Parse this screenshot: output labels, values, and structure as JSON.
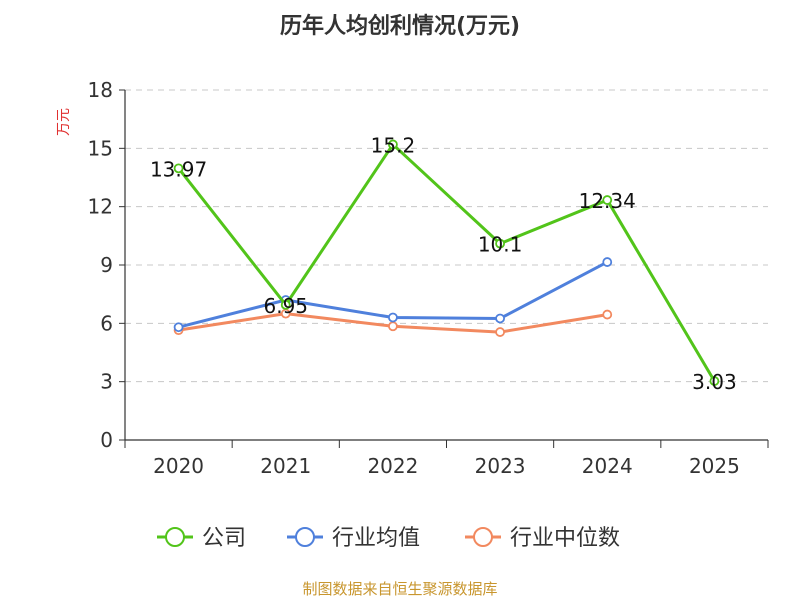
{
  "chart_data": {
    "type": "line",
    "title": "历年人均创利情况(万元)",
    "ylabel": "万元",
    "xlabel": "",
    "categories": [
      "2020",
      "2021",
      "2022",
      "2023",
      "2024",
      "2025"
    ],
    "ylim": [
      0,
      18
    ],
    "yticks": [
      "0",
      "3",
      "6",
      "9",
      "12",
      "15",
      "18"
    ],
    "grid": true,
    "legend_position": "bottom-center",
    "series": [
      {
        "name": "公司",
        "color": "#52c41a",
        "values": [
          13.97,
          6.95,
          15.2,
          10.1,
          12.34,
          3.03
        ],
        "labels": [
          "13.97",
          "6.95",
          "15.2",
          "10.1",
          "12.34",
          "3.03"
        ]
      },
      {
        "name": "行业均值",
        "color": "#4f80dc",
        "values": [
          5.8,
          7.2,
          6.3,
          6.25,
          9.15,
          null
        ]
      },
      {
        "name": "行业中位数",
        "color": "#f2895f",
        "values": [
          5.65,
          6.5,
          5.85,
          5.55,
          6.45,
          null
        ]
      }
    ],
    "source": "制图数据来自恒生聚源数据库"
  }
}
